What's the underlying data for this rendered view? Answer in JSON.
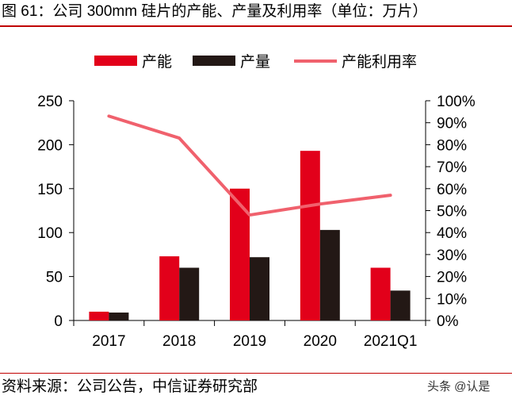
{
  "figure": {
    "title": "图 61：公司 300mm 硅片的产能、产量及利用率（单位：万片）",
    "source": "资料来源：公司公告，中信证券研究部",
    "watermark": "头条 @认是"
  },
  "colors": {
    "capacity": "#e2001a",
    "output": "#231815",
    "utilization": "#f0616d",
    "rule": "#c00000",
    "axis": "#000000"
  },
  "chart_data": {
    "type": "bar",
    "categories": [
      "2017",
      "2018",
      "2019",
      "2020",
      "2021Q1"
    ],
    "series": [
      {
        "name": "产能",
        "type": "bar",
        "axis": "left",
        "values": [
          10,
          73,
          150,
          193,
          60
        ]
      },
      {
        "name": "产量",
        "type": "bar",
        "axis": "left",
        "values": [
          9,
          60,
          72,
          103,
          34
        ]
      },
      {
        "name": "产能利用率",
        "type": "line",
        "axis": "right",
        "values": [
          93,
          83,
          48,
          53,
          57
        ]
      }
    ],
    "y_left": {
      "min": 0,
      "max": 250,
      "ticks": [
        0,
        50,
        100,
        150,
        200,
        250
      ]
    },
    "y_right": {
      "min": 0,
      "max": 100,
      "ticks": [
        0,
        10,
        20,
        30,
        40,
        50,
        60,
        70,
        80,
        90,
        100
      ],
      "unit": "%"
    },
    "legend": {
      "position": "top"
    },
    "grid": false
  }
}
